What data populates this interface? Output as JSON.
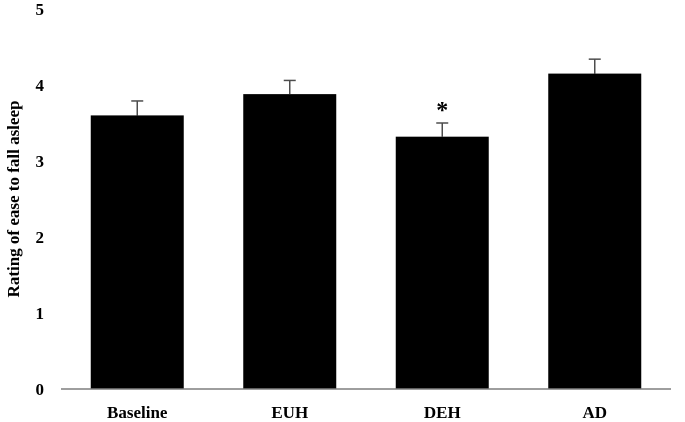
{
  "chart_data": {
    "type": "bar",
    "title": "",
    "xlabel": "",
    "ylabel": "Rating of ease to fall asleep",
    "categories": [
      "Baseline",
      "EUH",
      "DEH",
      "AD"
    ],
    "values": [
      3.6,
      3.88,
      3.32,
      4.15
    ],
    "error": [
      0.19,
      0.18,
      0.18,
      0.19
    ],
    "annotations": [
      "",
      "",
      "*",
      ""
    ],
    "ylim": [
      0,
      5
    ],
    "yticks": [
      0,
      1,
      2,
      3,
      4,
      5
    ],
    "grid": false,
    "legend": "none",
    "colors": {
      "bar": "#000000",
      "axis": "#7f7f7f",
      "error_bar": "#4d4d4d",
      "text": "#000000"
    }
  }
}
